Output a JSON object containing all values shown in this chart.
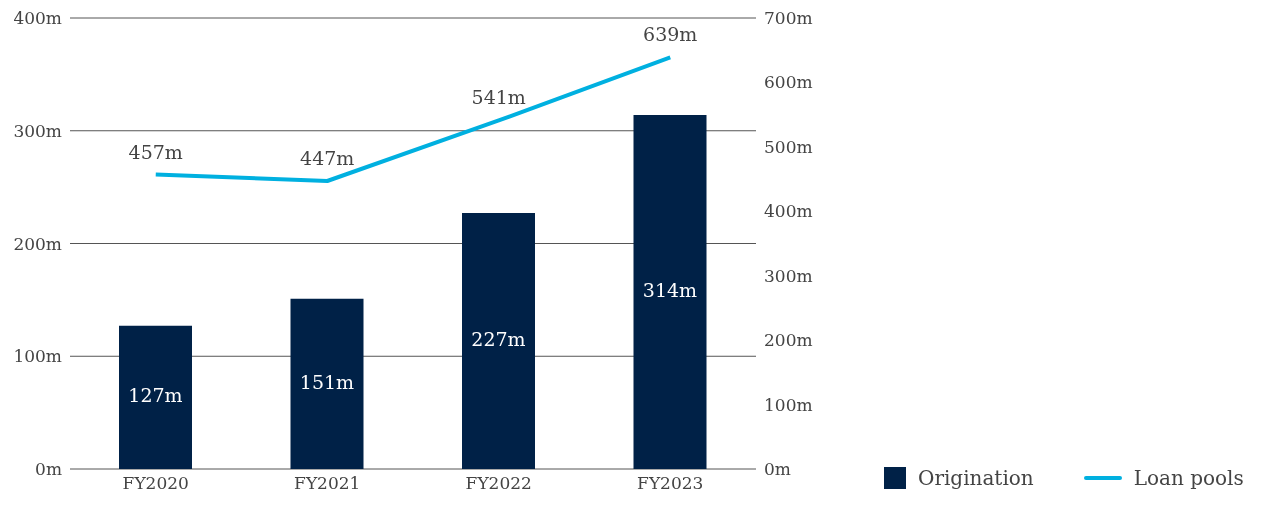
{
  "chart_data": {
    "type": "bar",
    "categories": [
      "FY2020",
      "FY2021",
      "FY2022",
      "FY2023"
    ],
    "series": [
      {
        "name": "Origination",
        "color": "#002147",
        "values": [
          127,
          151,
          227,
          314
        ],
        "value_labels": [
          "127m",
          "151m",
          "227m",
          "314m"
        ]
      },
      {
        "name": "Loan pools",
        "type": "line",
        "axis": "y2",
        "color": "#00b0e0",
        "values": [
          457,
          447,
          541,
          639
        ],
        "value_labels": [
          "457m",
          "447m",
          "541m",
          "639m"
        ]
      }
    ],
    "ylim": [
      0,
      400
    ],
    "yticks": [
      {
        "value": 0,
        "label": "0m"
      },
      {
        "value": 100,
        "label": "100m"
      },
      {
        "value": 200,
        "label": "200m"
      },
      {
        "value": 300,
        "label": "300m"
      },
      {
        "value": 400,
        "label": "400m"
      }
    ],
    "y2lim": [
      0,
      700
    ],
    "y2ticks": [
      {
        "value": 0,
        "label": "0m"
      },
      {
        "value": 100,
        "label": "100m"
      },
      {
        "value": 200,
        "label": "200m"
      },
      {
        "value": 300,
        "label": "300m"
      },
      {
        "value": 400,
        "label": "400m"
      },
      {
        "value": 500,
        "label": "500m"
      },
      {
        "value": 600,
        "label": "600m"
      },
      {
        "value": 700,
        "label": "700m"
      }
    ],
    "grid": "y",
    "legend": "bottom right",
    "marker": "none",
    "line_style": "solid"
  }
}
